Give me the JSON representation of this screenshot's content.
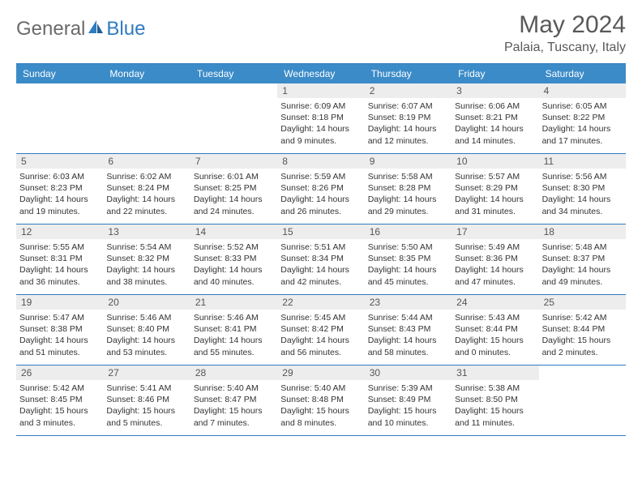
{
  "brand": {
    "part1": "General",
    "part2": "Blue"
  },
  "title": "May 2024",
  "location": "Palaia, Tuscany, Italy",
  "day_names": [
    "Sunday",
    "Monday",
    "Tuesday",
    "Wednesday",
    "Thursday",
    "Friday",
    "Saturday"
  ],
  "colors": {
    "header_bg": "#3b8bc8",
    "header_text": "#ffffff",
    "border": "#2f7bbf",
    "daynum_bg": "#ededed",
    "text": "#333333",
    "title_text": "#595959",
    "logo_gray": "#6a6a6a",
    "logo_blue": "#2f7bbf"
  },
  "weeks": [
    [
      {
        "n": "",
        "sr": "",
        "ss": "",
        "dl": ""
      },
      {
        "n": "",
        "sr": "",
        "ss": "",
        "dl": ""
      },
      {
        "n": "",
        "sr": "",
        "ss": "",
        "dl": ""
      },
      {
        "n": "1",
        "sr": "Sunrise: 6:09 AM",
        "ss": "Sunset: 8:18 PM",
        "dl": "Daylight: 14 hours and 9 minutes."
      },
      {
        "n": "2",
        "sr": "Sunrise: 6:07 AM",
        "ss": "Sunset: 8:19 PM",
        "dl": "Daylight: 14 hours and 12 minutes."
      },
      {
        "n": "3",
        "sr": "Sunrise: 6:06 AM",
        "ss": "Sunset: 8:21 PM",
        "dl": "Daylight: 14 hours and 14 minutes."
      },
      {
        "n": "4",
        "sr": "Sunrise: 6:05 AM",
        "ss": "Sunset: 8:22 PM",
        "dl": "Daylight: 14 hours and 17 minutes."
      }
    ],
    [
      {
        "n": "5",
        "sr": "Sunrise: 6:03 AM",
        "ss": "Sunset: 8:23 PM",
        "dl": "Daylight: 14 hours and 19 minutes."
      },
      {
        "n": "6",
        "sr": "Sunrise: 6:02 AM",
        "ss": "Sunset: 8:24 PM",
        "dl": "Daylight: 14 hours and 22 minutes."
      },
      {
        "n": "7",
        "sr": "Sunrise: 6:01 AM",
        "ss": "Sunset: 8:25 PM",
        "dl": "Daylight: 14 hours and 24 minutes."
      },
      {
        "n": "8",
        "sr": "Sunrise: 5:59 AM",
        "ss": "Sunset: 8:26 PM",
        "dl": "Daylight: 14 hours and 26 minutes."
      },
      {
        "n": "9",
        "sr": "Sunrise: 5:58 AM",
        "ss": "Sunset: 8:28 PM",
        "dl": "Daylight: 14 hours and 29 minutes."
      },
      {
        "n": "10",
        "sr": "Sunrise: 5:57 AM",
        "ss": "Sunset: 8:29 PM",
        "dl": "Daylight: 14 hours and 31 minutes."
      },
      {
        "n": "11",
        "sr": "Sunrise: 5:56 AM",
        "ss": "Sunset: 8:30 PM",
        "dl": "Daylight: 14 hours and 34 minutes."
      }
    ],
    [
      {
        "n": "12",
        "sr": "Sunrise: 5:55 AM",
        "ss": "Sunset: 8:31 PM",
        "dl": "Daylight: 14 hours and 36 minutes."
      },
      {
        "n": "13",
        "sr": "Sunrise: 5:54 AM",
        "ss": "Sunset: 8:32 PM",
        "dl": "Daylight: 14 hours and 38 minutes."
      },
      {
        "n": "14",
        "sr": "Sunrise: 5:52 AM",
        "ss": "Sunset: 8:33 PM",
        "dl": "Daylight: 14 hours and 40 minutes."
      },
      {
        "n": "15",
        "sr": "Sunrise: 5:51 AM",
        "ss": "Sunset: 8:34 PM",
        "dl": "Daylight: 14 hours and 42 minutes."
      },
      {
        "n": "16",
        "sr": "Sunrise: 5:50 AM",
        "ss": "Sunset: 8:35 PM",
        "dl": "Daylight: 14 hours and 45 minutes."
      },
      {
        "n": "17",
        "sr": "Sunrise: 5:49 AM",
        "ss": "Sunset: 8:36 PM",
        "dl": "Daylight: 14 hours and 47 minutes."
      },
      {
        "n": "18",
        "sr": "Sunrise: 5:48 AM",
        "ss": "Sunset: 8:37 PM",
        "dl": "Daylight: 14 hours and 49 minutes."
      }
    ],
    [
      {
        "n": "19",
        "sr": "Sunrise: 5:47 AM",
        "ss": "Sunset: 8:38 PM",
        "dl": "Daylight: 14 hours and 51 minutes."
      },
      {
        "n": "20",
        "sr": "Sunrise: 5:46 AM",
        "ss": "Sunset: 8:40 PM",
        "dl": "Daylight: 14 hours and 53 minutes."
      },
      {
        "n": "21",
        "sr": "Sunrise: 5:46 AM",
        "ss": "Sunset: 8:41 PM",
        "dl": "Daylight: 14 hours and 55 minutes."
      },
      {
        "n": "22",
        "sr": "Sunrise: 5:45 AM",
        "ss": "Sunset: 8:42 PM",
        "dl": "Daylight: 14 hours and 56 minutes."
      },
      {
        "n": "23",
        "sr": "Sunrise: 5:44 AM",
        "ss": "Sunset: 8:43 PM",
        "dl": "Daylight: 14 hours and 58 minutes."
      },
      {
        "n": "24",
        "sr": "Sunrise: 5:43 AM",
        "ss": "Sunset: 8:44 PM",
        "dl": "Daylight: 15 hours and 0 minutes."
      },
      {
        "n": "25",
        "sr": "Sunrise: 5:42 AM",
        "ss": "Sunset: 8:44 PM",
        "dl": "Daylight: 15 hours and 2 minutes."
      }
    ],
    [
      {
        "n": "26",
        "sr": "Sunrise: 5:42 AM",
        "ss": "Sunset: 8:45 PM",
        "dl": "Daylight: 15 hours and 3 minutes."
      },
      {
        "n": "27",
        "sr": "Sunrise: 5:41 AM",
        "ss": "Sunset: 8:46 PM",
        "dl": "Daylight: 15 hours and 5 minutes."
      },
      {
        "n": "28",
        "sr": "Sunrise: 5:40 AM",
        "ss": "Sunset: 8:47 PM",
        "dl": "Daylight: 15 hours and 7 minutes."
      },
      {
        "n": "29",
        "sr": "Sunrise: 5:40 AM",
        "ss": "Sunset: 8:48 PM",
        "dl": "Daylight: 15 hours and 8 minutes."
      },
      {
        "n": "30",
        "sr": "Sunrise: 5:39 AM",
        "ss": "Sunset: 8:49 PM",
        "dl": "Daylight: 15 hours and 10 minutes."
      },
      {
        "n": "31",
        "sr": "Sunrise: 5:38 AM",
        "ss": "Sunset: 8:50 PM",
        "dl": "Daylight: 15 hours and 11 minutes."
      },
      {
        "n": "",
        "sr": "",
        "ss": "",
        "dl": ""
      }
    ]
  ]
}
